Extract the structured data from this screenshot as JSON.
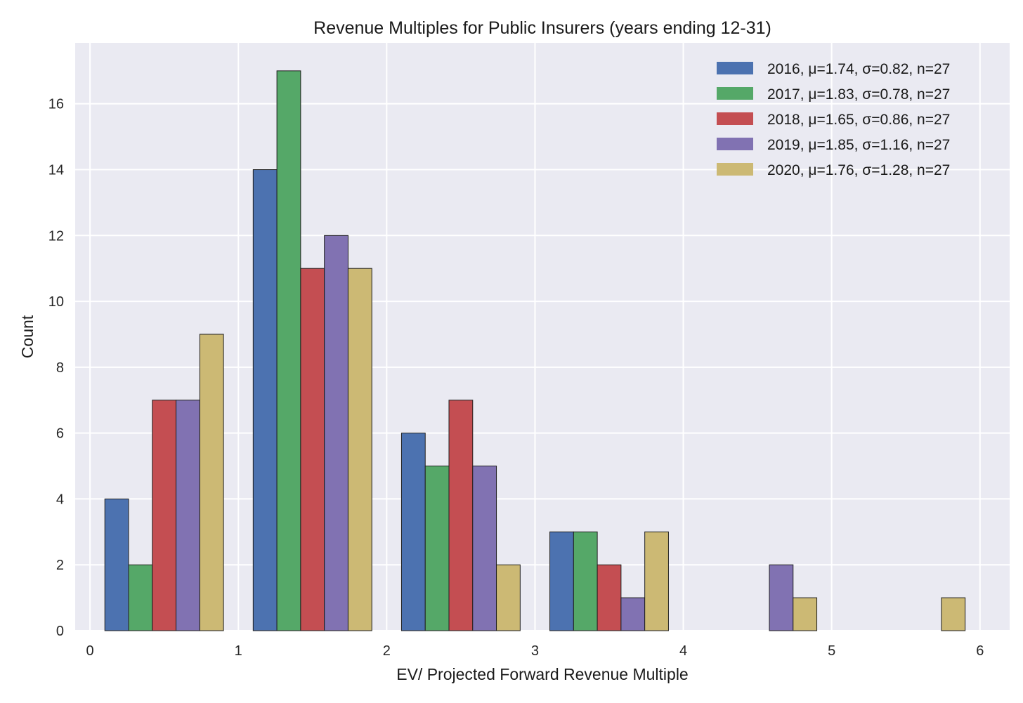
{
  "chart_data": {
    "type": "bar",
    "title": "Revenue Multiples for Public Insurers (years ending 12-31)",
    "xlabel": "EV/ Projected Forward Revenue Multiple",
    "ylabel": "Count",
    "xlim": [
      -0.1,
      6.2
    ],
    "ylim": [
      0,
      17.85
    ],
    "x_ticks": [
      0,
      1,
      2,
      3,
      4,
      5,
      6
    ],
    "y_ticks": [
      0,
      2,
      4,
      6,
      8,
      10,
      12,
      14,
      16
    ],
    "grid": true,
    "background": "#EAEAF2",
    "legend_position": "top-right",
    "bin_edges": [
      0.1,
      1.1,
      2.1,
      3.1,
      4.1,
      5.1,
      6.1
    ],
    "series": [
      {
        "name": "2016, μ=1.74, σ=0.82, n=27",
        "color": "#4C72B0",
        "values": [
          4,
          14,
          6,
          3,
          0,
          0
        ]
      },
      {
        "name": "2017, μ=1.83, σ=0.78, n=27",
        "color": "#55A868",
        "values": [
          2,
          17,
          5,
          3,
          0,
          0
        ]
      },
      {
        "name": "2018, μ=1.65, σ=0.86, n=27",
        "color": "#C44E52",
        "values": [
          7,
          11,
          7,
          2,
          0,
          0
        ]
      },
      {
        "name": "2019, μ=1.85, σ=1.16, n=27",
        "color": "#8172B2",
        "values": [
          7,
          12,
          5,
          1,
          2,
          0
        ]
      },
      {
        "name": "2020, μ=1.76, σ=1.28, n=27",
        "color": "#CCB974",
        "values": [
          9,
          11,
          2,
          3,
          1,
          1
        ]
      }
    ]
  }
}
